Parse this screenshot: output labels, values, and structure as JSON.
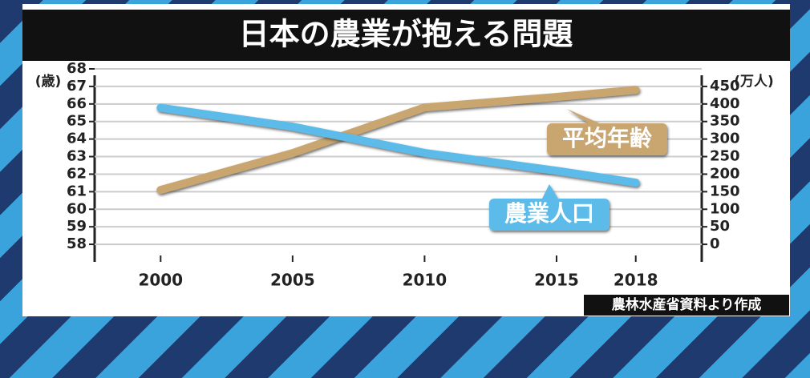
{
  "chart_data": {
    "type": "line",
    "title": "日本の農業が抱える問題",
    "y_label": "(歳)",
    "y2_label": "(万人)",
    "source": "農林水産省資料より作成",
    "x": [
      2000,
      2005,
      2010,
      2015,
      2018
    ],
    "xlim": [
      1997.5,
      2020.5
    ],
    "xticks": [
      2000,
      2005,
      2010,
      2015,
      2018
    ],
    "ylim": [
      57,
      68
    ],
    "yticks": [
      58,
      59,
      60,
      61,
      62,
      63,
      64,
      65,
      66,
      67,
      68
    ],
    "y2lim": [
      -50,
      500
    ],
    "y2ticks": [
      0,
      50,
      100,
      150,
      200,
      250,
      300,
      350,
      400,
      450
    ],
    "grid": true,
    "series": [
      {
        "name": "平均年齢",
        "color": "#c9a56f",
        "values": [
          61.1,
          63.2,
          65.8,
          66.4,
          66.8
        ]
      },
      {
        "name": "農業人口",
        "color": "#5cbbe8",
        "axis": "y2",
        "values": [
          389.1,
          335.3,
          260.6,
          209.7,
          175.7
        ]
      }
    ]
  }
}
